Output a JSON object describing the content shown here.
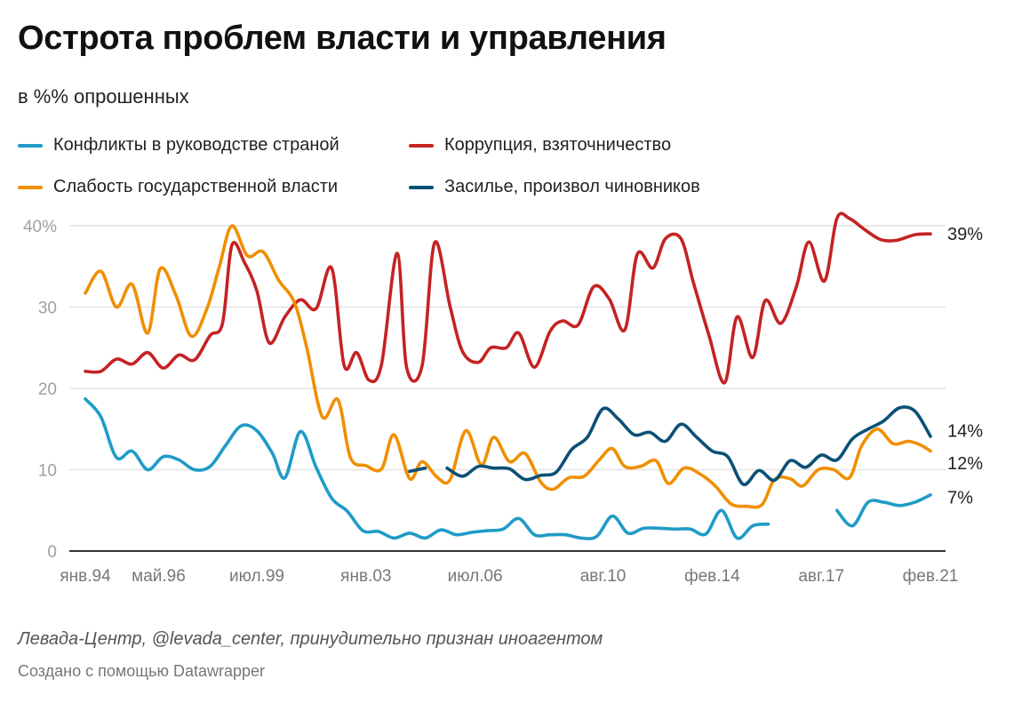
{
  "title": "Острота проблем власти и управления",
  "subtitle": "в %% опрошенных",
  "legend": [
    {
      "label": "Конфликты в руководстве страной",
      "color": "#1f9bc7"
    },
    {
      "label": "Коррупция, взяточничество",
      "color": "#c42323"
    },
    {
      "label": "Слабость государственной власти",
      "color": "#f08f00"
    },
    {
      "label": "Засилье, произвол чиновников",
      "color": "#0b5076"
    }
  ],
  "footer": {
    "source": "Левада-Центр, @levada_center, принудительно признан иноагентом",
    "credit": "Создано с помощью Datawrapper"
  },
  "chart_data": {
    "type": "line",
    "title": "Острота проблем власти и управления",
    "subtitle": "в %% опрошенных",
    "xlabel": "",
    "ylabel": "",
    "ylim": [
      0,
      40
    ],
    "xlim": [
      1994.0,
      2021.1
    ],
    "y_ticks": [
      {
        "value": 0,
        "label": "0"
      },
      {
        "value": 10,
        "label": "10"
      },
      {
        "value": 20,
        "label": "20"
      },
      {
        "value": 30,
        "label": "30"
      },
      {
        "value": 40,
        "label": "40%"
      }
    ],
    "x_ticks": [
      {
        "value": 1994.0,
        "label": "янв.94"
      },
      {
        "value": 1996.35,
        "label": "май.96"
      },
      {
        "value": 1999.5,
        "label": "июл.99"
      },
      {
        "value": 2003.0,
        "label": "янв.03"
      },
      {
        "value": 2006.5,
        "label": "июл.06"
      },
      {
        "value": 2010.6,
        "label": "авг.10"
      },
      {
        "value": 2014.1,
        "label": "фев.14"
      },
      {
        "value": 2017.6,
        "label": "авг.17"
      },
      {
        "value": 2021.1,
        "label": "фев.21"
      }
    ],
    "grid": true,
    "legend_position": "top-left",
    "series": [
      {
        "name": "Коррупция, взяточничество",
        "color": "#c42323",
        "end_label": "39%",
        "segments": [
          [
            [
              1994.0,
              22.1
            ],
            [
              1994.5,
              22.1
            ],
            [
              1995.0,
              23.6
            ],
            [
              1995.5,
              23.0
            ],
            [
              1996.0,
              24.4
            ],
            [
              1996.5,
              22.5
            ],
            [
              1997.0,
              24.1
            ],
            [
              1997.5,
              23.5
            ],
            [
              1998.0,
              26.5
            ],
            [
              1998.4,
              28.0
            ],
            [
              1998.7,
              37.6
            ],
            [
              1999.1,
              35.5
            ],
            [
              1999.5,
              32.0
            ],
            [
              1999.9,
              25.6
            ],
            [
              2000.4,
              28.8
            ],
            [
              2000.9,
              30.9
            ],
            [
              2001.4,
              29.8
            ],
            [
              2001.9,
              34.8
            ],
            [
              2002.3,
              22.8
            ],
            [
              2002.7,
              24.4
            ],
            [
              2003.1,
              21.0
            ],
            [
              2003.5,
              23.0
            ],
            [
              2004.0,
              36.6
            ],
            [
              2004.3,
              22.6
            ],
            [
              2004.8,
              22.8
            ],
            [
              2005.2,
              37.9
            ],
            [
              2005.7,
              30.0
            ],
            [
              2006.1,
              24.5
            ],
            [
              2006.6,
              23.2
            ],
            [
              2007.0,
              25.0
            ],
            [
              2007.5,
              25.0
            ],
            [
              2007.9,
              26.8
            ],
            [
              2008.4,
              22.6
            ],
            [
              2008.9,
              27.0
            ],
            [
              2009.3,
              28.3
            ],
            [
              2009.8,
              27.8
            ],
            [
              2010.3,
              32.5
            ],
            [
              2010.8,
              31.0
            ],
            [
              2011.3,
              27.2
            ],
            [
              2011.7,
              36.5
            ],
            [
              2012.2,
              34.8
            ],
            [
              2012.6,
              38.4
            ],
            [
              2013.1,
              38.4
            ],
            [
              2013.5,
              33.0
            ],
            [
              2014.0,
              26.5
            ],
            [
              2014.5,
              20.7
            ],
            [
              2014.9,
              28.8
            ],
            [
              2015.4,
              23.8
            ],
            [
              2015.8,
              30.8
            ],
            [
              2016.3,
              28.0
            ],
            [
              2016.8,
              32.5
            ],
            [
              2017.2,
              38.0
            ],
            [
              2017.7,
              33.2
            ],
            [
              2018.1,
              40.9
            ],
            [
              2018.5,
              40.9
            ],
            [
              2019.0,
              39.5
            ],
            [
              2019.5,
              38.3
            ],
            [
              2020.0,
              38.2
            ],
            [
              2020.6,
              38.9
            ],
            [
              2021.1,
              39.0
            ]
          ]
        ]
      },
      {
        "name": "Слабость государственной власти",
        "color": "#f08f00",
        "end_label": "12%",
        "segments": [
          [
            [
              1994.0,
              31.7
            ],
            [
              1994.5,
              34.4
            ],
            [
              1995.0,
              30.0
            ],
            [
              1995.5,
              32.8
            ],
            [
              1996.0,
              26.8
            ],
            [
              1996.4,
              34.7
            ],
            [
              1996.9,
              31.5
            ],
            [
              1997.4,
              26.4
            ],
            [
              1997.9,
              29.8
            ],
            [
              1998.3,
              35.0
            ],
            [
              1998.7,
              40.0
            ],
            [
              1999.2,
              36.3
            ],
            [
              1999.7,
              36.8
            ],
            [
              2000.2,
              33.3
            ],
            [
              2000.7,
              30.6
            ],
            [
              2001.1,
              25.0
            ],
            [
              2001.6,
              16.5
            ],
            [
              2002.1,
              18.6
            ],
            [
              2002.5,
              11.5
            ],
            [
              2003.0,
              10.5
            ],
            [
              2003.5,
              10.1
            ],
            [
              2003.9,
              14.3
            ],
            [
              2004.4,
              8.9
            ],
            [
              2004.8,
              11.0
            ],
            [
              2005.3,
              9.0
            ],
            [
              2005.7,
              8.8
            ],
            [
              2006.2,
              14.8
            ],
            [
              2006.7,
              10.6
            ],
            [
              2007.1,
              14.0
            ],
            [
              2007.6,
              11.0
            ],
            [
              2008.1,
              12.0
            ],
            [
              2008.6,
              8.5
            ],
            [
              2009.0,
              7.6
            ],
            [
              2009.5,
              9.0
            ],
            [
              2010.0,
              9.2
            ],
            [
              2010.5,
              11.3
            ],
            [
              2010.9,
              12.6
            ],
            [
              2011.3,
              10.4
            ],
            [
              2011.8,
              10.4
            ],
            [
              2012.3,
              11.1
            ],
            [
              2012.7,
              8.3
            ],
            [
              2013.2,
              10.2
            ],
            [
              2013.7,
              9.5
            ],
            [
              2014.2,
              8.0
            ],
            [
              2014.7,
              5.8
            ],
            [
              2015.2,
              5.5
            ],
            [
              2015.7,
              5.7
            ],
            [
              2016.1,
              8.8
            ],
            [
              2016.6,
              8.9
            ],
            [
              2017.0,
              8.0
            ],
            [
              2017.5,
              10.0
            ],
            [
              2018.0,
              10.0
            ],
            [
              2018.5,
              9.0
            ],
            [
              2018.9,
              13.0
            ],
            [
              2019.4,
              15.0
            ],
            [
              2019.9,
              13.2
            ],
            [
              2020.4,
              13.5
            ],
            [
              2020.8,
              13.0
            ],
            [
              2021.1,
              12.3
            ]
          ]
        ]
      },
      {
        "name": "Засилье, произвол чиновников",
        "color": "#0b5076",
        "end_label": "14%",
        "segments": [
          [
            [
              2004.4,
              9.8
            ],
            [
              2004.9,
              10.2
            ]
          ],
          [
            [
              2005.6,
              10.2
            ],
            [
              2006.1,
              9.2
            ],
            [
              2006.6,
              10.4
            ],
            [
              2007.1,
              10.2
            ],
            [
              2007.6,
              10.1
            ],
            [
              2008.1,
              8.8
            ],
            [
              2008.6,
              9.3
            ],
            [
              2009.1,
              9.7
            ],
            [
              2009.6,
              12.5
            ],
            [
              2010.1,
              14.0
            ],
            [
              2010.6,
              17.5
            ],
            [
              2011.1,
              16.2
            ],
            [
              2011.6,
              14.3
            ],
            [
              2012.1,
              14.6
            ],
            [
              2012.6,
              13.5
            ],
            [
              2013.1,
              15.6
            ],
            [
              2013.6,
              14.0
            ],
            [
              2014.1,
              12.3
            ],
            [
              2014.6,
              11.6
            ],
            [
              2015.1,
              8.2
            ],
            [
              2015.6,
              9.9
            ],
            [
              2016.1,
              8.7
            ],
            [
              2016.6,
              11.1
            ],
            [
              2017.1,
              10.3
            ],
            [
              2017.6,
              11.8
            ],
            [
              2018.1,
              11.2
            ],
            [
              2018.6,
              13.8
            ],
            [
              2019.1,
              15.0
            ],
            [
              2019.6,
              16.0
            ],
            [
              2020.1,
              17.6
            ],
            [
              2020.6,
              17.2
            ],
            [
              2021.1,
              14.1
            ]
          ]
        ]
      },
      {
        "name": "Конфликты в руководстве страной",
        "color": "#1f9bc7",
        "end_label": "7%",
        "segments": [
          [
            [
              1994.0,
              18.7
            ],
            [
              1994.5,
              16.5
            ],
            [
              1995.0,
              11.5
            ],
            [
              1995.5,
              12.3
            ],
            [
              1996.0,
              10.0
            ],
            [
              1996.5,
              11.6
            ],
            [
              1997.0,
              11.2
            ],
            [
              1997.5,
              10.0
            ],
            [
              1998.0,
              10.4
            ],
            [
              1998.5,
              13.0
            ],
            [
              1999.0,
              15.4
            ],
            [
              1999.5,
              14.8
            ],
            [
              2000.0,
              12.0
            ],
            [
              2000.4,
              9.0
            ],
            [
              2000.9,
              14.7
            ],
            [
              2001.4,
              10.3
            ],
            [
              2001.9,
              6.5
            ],
            [
              2002.4,
              4.9
            ],
            [
              2002.9,
              2.5
            ],
            [
              2003.4,
              2.4
            ],
            [
              2003.9,
              1.6
            ],
            [
              2004.4,
              2.2
            ],
            [
              2004.9,
              1.6
            ],
            [
              2005.4,
              2.6
            ],
            [
              2005.9,
              2.0
            ],
            [
              2006.4,
              2.3
            ],
            [
              2006.9,
              2.5
            ],
            [
              2007.4,
              2.7
            ],
            [
              2007.9,
              4.0
            ],
            [
              2008.4,
              2.0
            ],
            [
              2008.9,
              2.0
            ],
            [
              2009.4,
              2.0
            ],
            [
              2009.9,
              1.6
            ],
            [
              2010.4,
              1.8
            ],
            [
              2010.9,
              4.3
            ],
            [
              2011.4,
              2.2
            ],
            [
              2011.9,
              2.8
            ],
            [
              2012.4,
              2.8
            ],
            [
              2012.9,
              2.7
            ],
            [
              2013.4,
              2.7
            ],
            [
              2013.9,
              2.1
            ],
            [
              2014.4,
              5.0
            ],
            [
              2014.9,
              1.6
            ],
            [
              2015.4,
              3.1
            ],
            [
              2015.9,
              3.3
            ]
          ],
          [
            [
              2018.1,
              5.0
            ],
            [
              2018.6,
              3.1
            ],
            [
              2019.1,
              6.0
            ],
            [
              2019.6,
              6.0
            ],
            [
              2020.1,
              5.6
            ],
            [
              2020.6,
              6.0
            ],
            [
              2021.1,
              6.9
            ]
          ]
        ]
      }
    ]
  }
}
